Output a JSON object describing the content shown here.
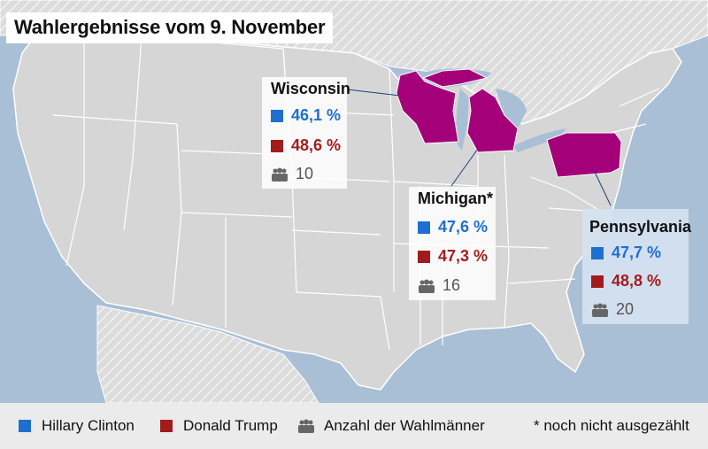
{
  "title": "Wahlergebnisse vom 9. November",
  "colors": {
    "clinton": "#1f6fd1",
    "trump": "#a31c1c",
    "highlight": "#a4007a",
    "land": "#d6d6d6",
    "water": "#a9bfd6"
  },
  "states": [
    {
      "name": "Wisconsin",
      "clinton": "46,1 %",
      "trump": "48,6 %",
      "electors": "10"
    },
    {
      "name": "Michigan*",
      "clinton": "47,6 %",
      "trump": "47,3 %",
      "electors": "16"
    },
    {
      "name": "Pennsylvania",
      "clinton": "47,7 %",
      "trump": "48,8 %",
      "electors": "20"
    }
  ],
  "legend": {
    "clinton": "Hillary Clinton",
    "trump": "Donald Trump",
    "electors": "Anzahl der Wahlmänner",
    "note": "* noch nicht ausgezählt",
    "people_icon": "people-icon"
  }
}
